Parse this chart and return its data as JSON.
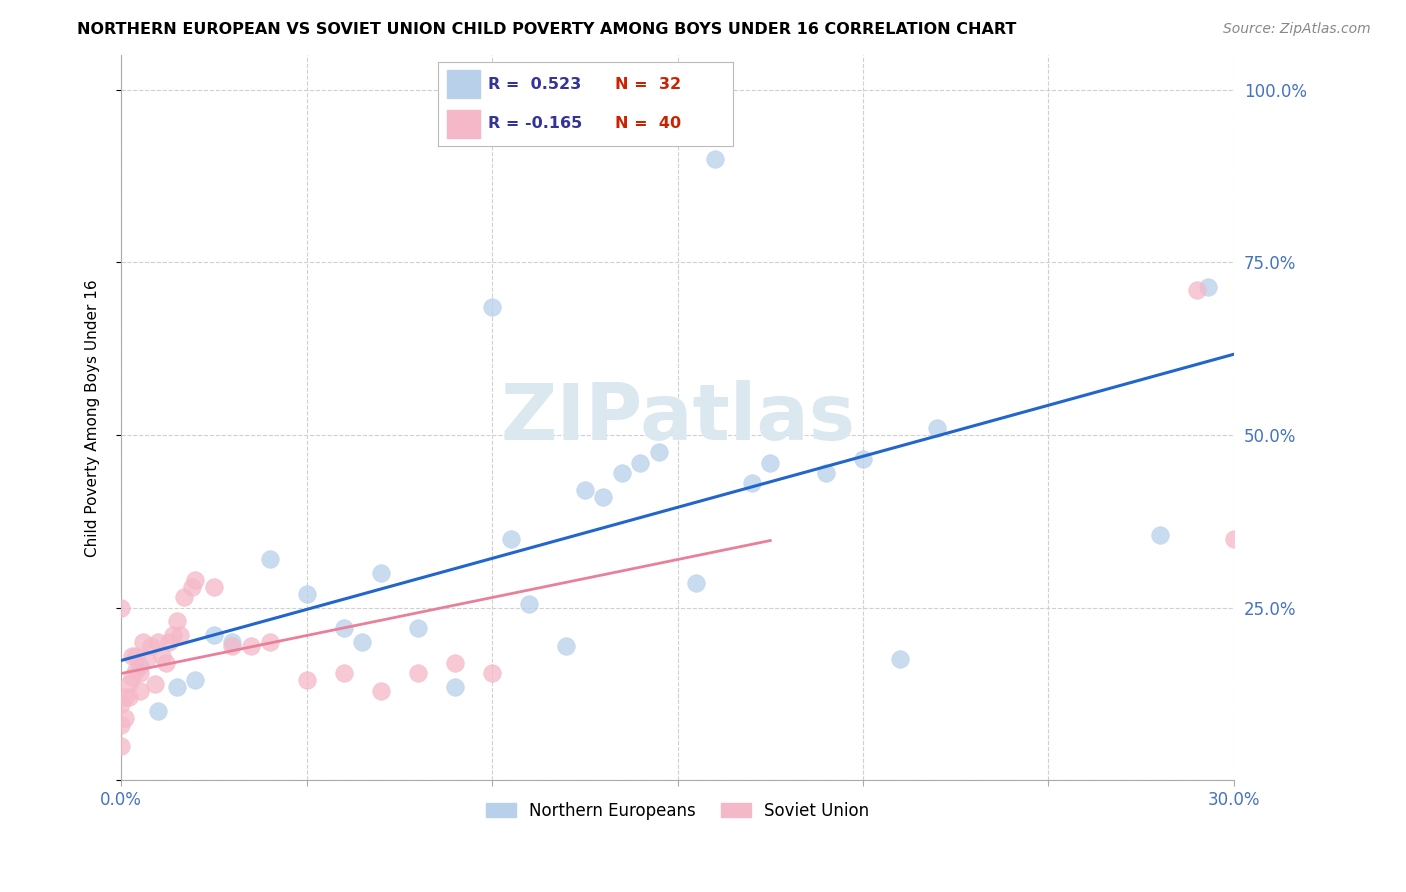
{
  "title": "NORTHERN EUROPEAN VS SOVIET UNION CHILD POVERTY AMONG BOYS UNDER 16 CORRELATION CHART",
  "source": "Source: ZipAtlas.com",
  "ylabel": "Child Poverty Among Boys Under 16",
  "xlim": [
    0.0,
    0.3
  ],
  "ylim": [
    0.0,
    1.05
  ],
  "xticks": [
    0.0,
    0.05,
    0.1,
    0.15,
    0.2,
    0.25,
    0.3
  ],
  "yticks": [
    0.0,
    0.25,
    0.5,
    0.75,
    1.0
  ],
  "ytick_labels": [
    "",
    "25.0%",
    "50.0%",
    "75.0%",
    "100.0%"
  ],
  "xtick_labels": [
    "0.0%",
    "",
    "",
    "",
    "",
    "",
    "30.0%"
  ],
  "blue_R": 0.523,
  "blue_N": 32,
  "pink_R": -0.165,
  "pink_N": 40,
  "blue_color": "#b8d0ea",
  "pink_color": "#f5b8c8",
  "trend_blue": "#2266cc",
  "trend_pink": "#e8809a",
  "watermark_color": "#dce8f0",
  "tick_color": "#4472c4",
  "grid_color": "#d0d0d0",
  "blue_scatter_x": [
    0.005,
    0.01,
    0.015,
    0.02,
    0.025,
    0.03,
    0.04,
    0.05,
    0.06,
    0.065,
    0.07,
    0.08,
    0.09,
    0.1,
    0.105,
    0.11,
    0.12,
    0.125,
    0.13,
    0.135,
    0.14,
    0.145,
    0.155,
    0.16,
    0.17,
    0.175,
    0.19,
    0.2,
    0.21,
    0.22,
    0.28,
    0.293
  ],
  "blue_scatter_y": [
    0.165,
    0.1,
    0.135,
    0.145,
    0.21,
    0.2,
    0.32,
    0.27,
    0.22,
    0.2,
    0.3,
    0.22,
    0.135,
    0.685,
    0.35,
    0.255,
    0.195,
    0.42,
    0.41,
    0.445,
    0.46,
    0.475,
    0.285,
    0.9,
    0.43,
    0.46,
    0.445,
    0.465,
    0.175,
    0.51,
    0.355,
    0.715
  ],
  "pink_scatter_x": [
    0.0,
    0.0,
    0.0,
    0.0,
    0.001,
    0.001,
    0.002,
    0.002,
    0.003,
    0.003,
    0.004,
    0.004,
    0.005,
    0.005,
    0.006,
    0.007,
    0.008,
    0.009,
    0.01,
    0.011,
    0.012,
    0.013,
    0.014,
    0.015,
    0.016,
    0.017,
    0.019,
    0.02,
    0.025,
    0.03,
    0.035,
    0.04,
    0.05,
    0.06,
    0.07,
    0.08,
    0.09,
    0.1,
    0.29,
    0.3
  ],
  "pink_scatter_y": [
    0.05,
    0.08,
    0.11,
    0.25,
    0.09,
    0.12,
    0.12,
    0.14,
    0.15,
    0.18,
    0.16,
    0.18,
    0.13,
    0.155,
    0.2,
    0.175,
    0.195,
    0.14,
    0.2,
    0.18,
    0.17,
    0.2,
    0.21,
    0.23,
    0.21,
    0.265,
    0.28,
    0.29,
    0.28,
    0.195,
    0.195,
    0.2,
    0.145,
    0.155,
    0.13,
    0.155,
    0.17,
    0.155,
    0.71,
    0.35
  ]
}
